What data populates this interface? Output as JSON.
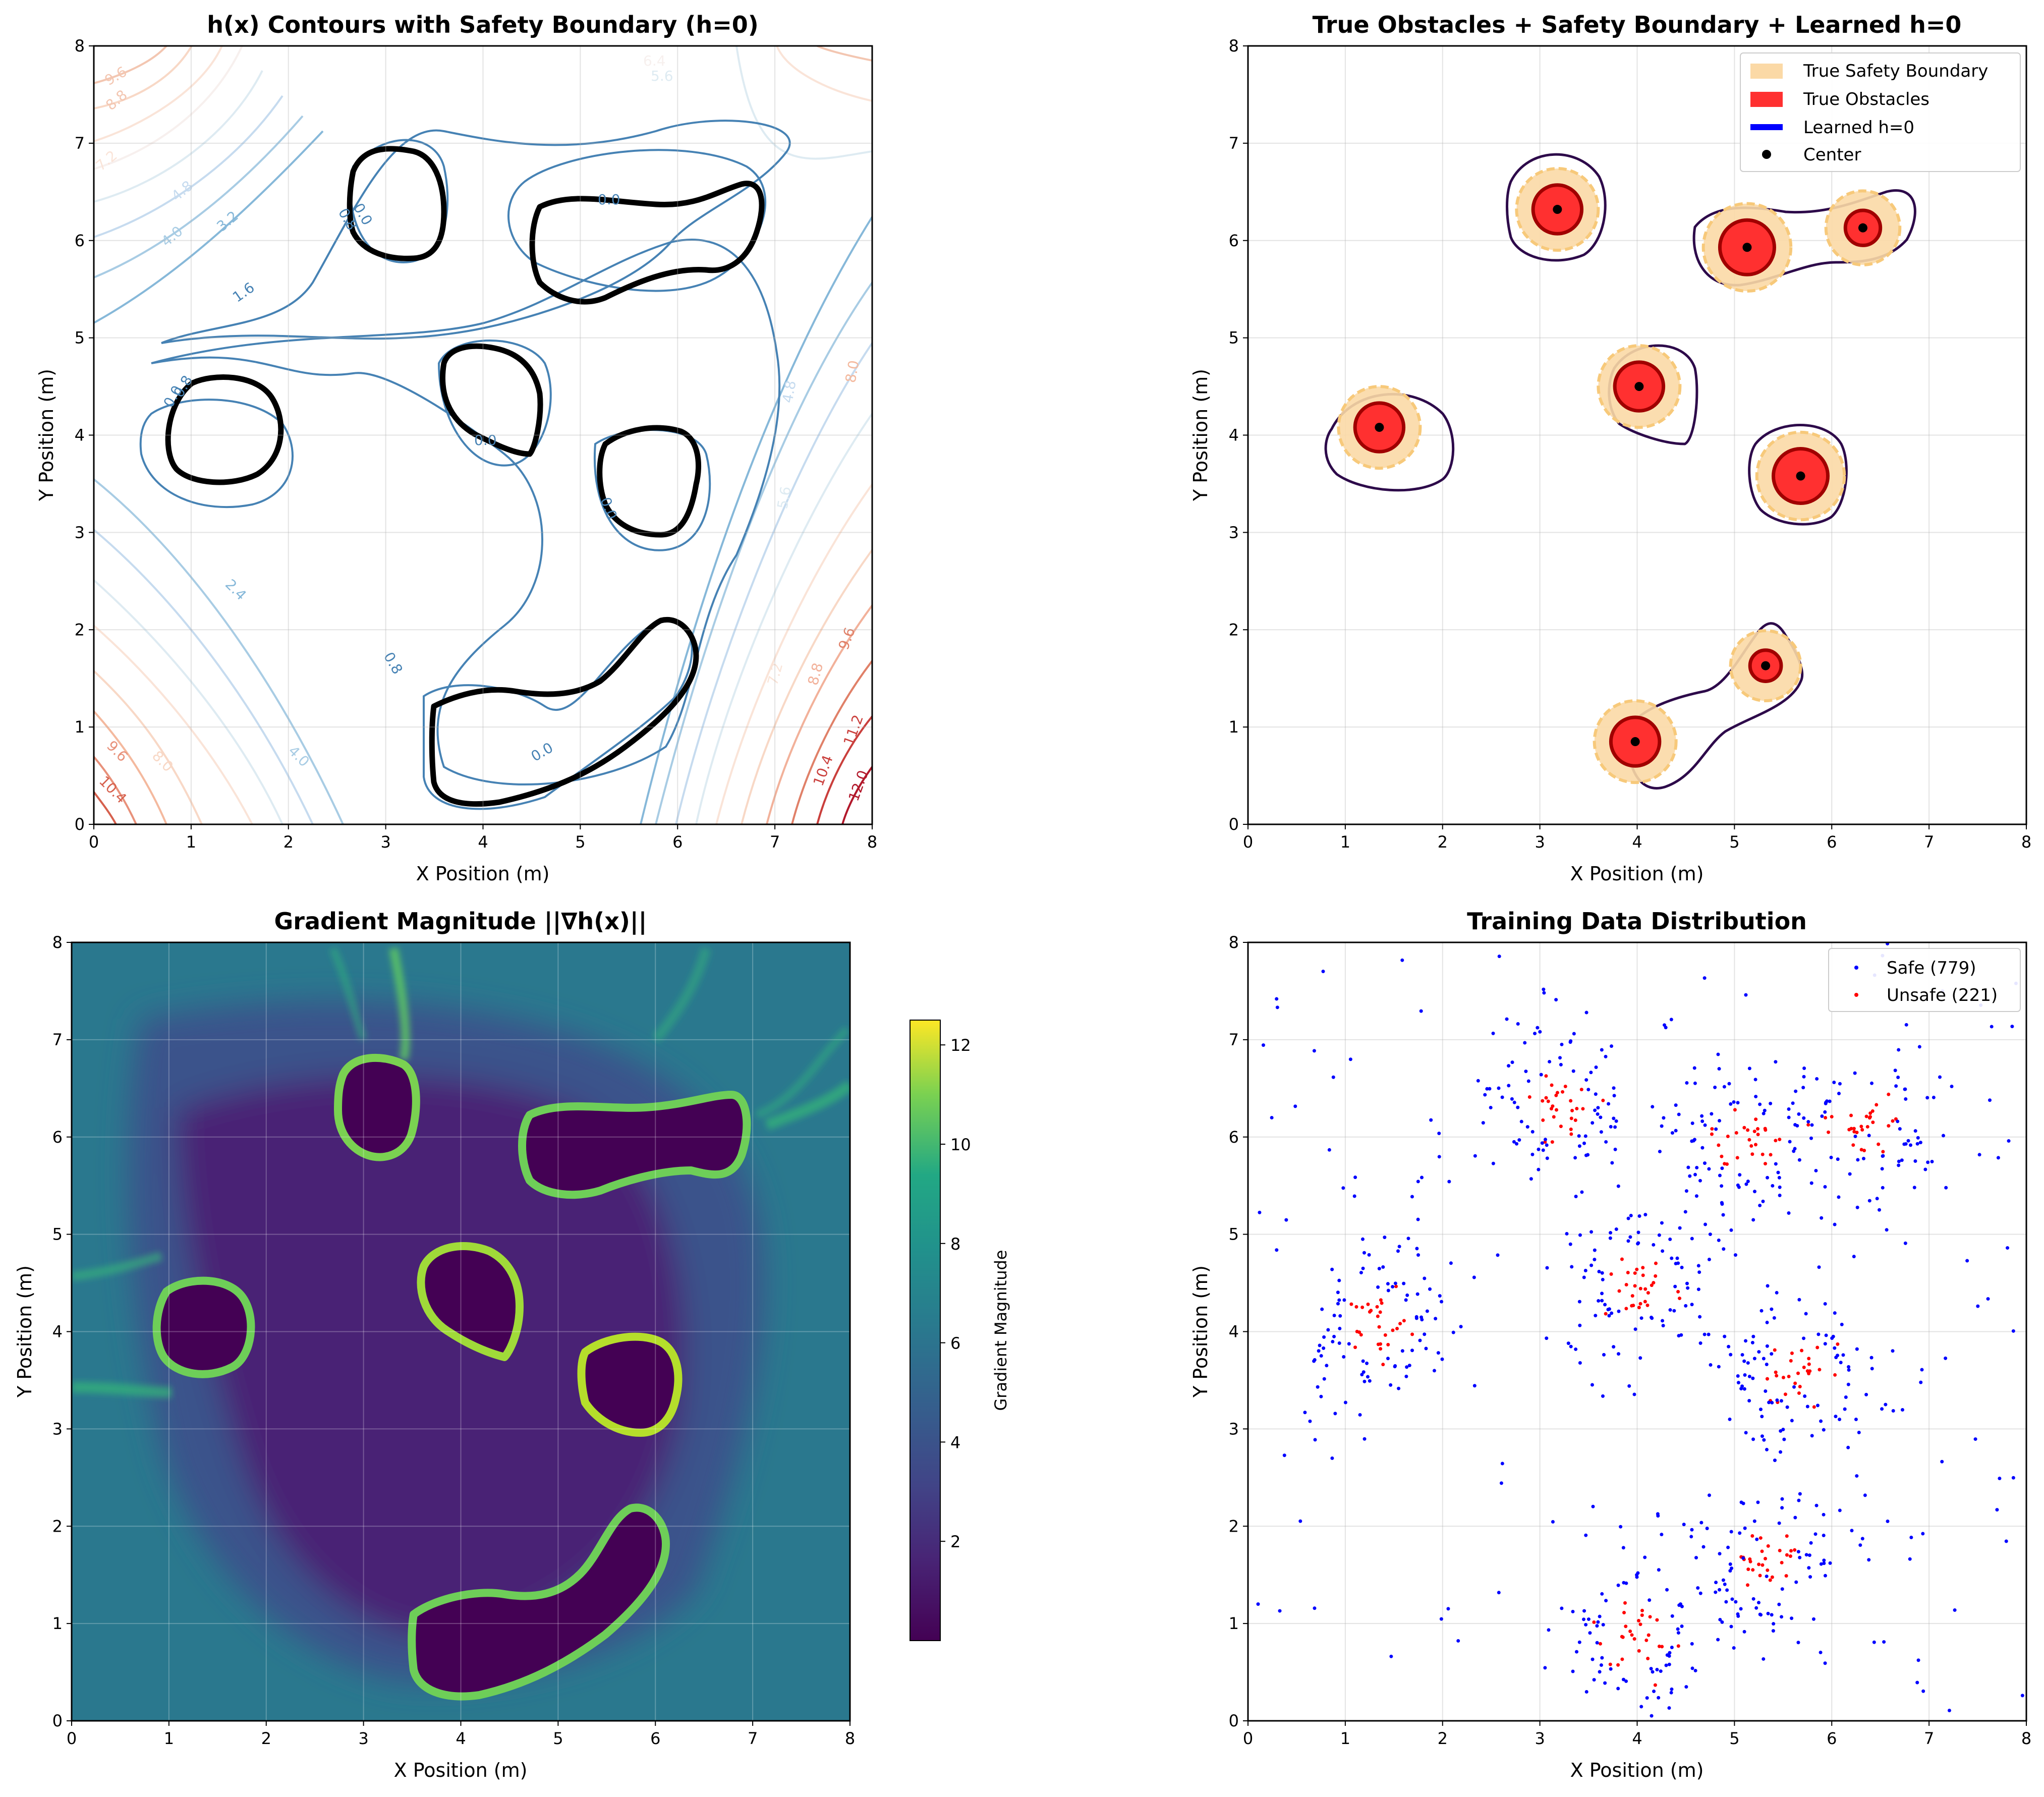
{
  "chart_data": [
    {
      "type": "contour",
      "title": "h(x) Contours with Safety Boundary (h=0)",
      "xlabel": "X Position (m)",
      "ylabel": "Y Position (m)",
      "xlim": [
        0,
        8
      ],
      "ylim": [
        0,
        8
      ],
      "xticks": [
        "0",
        "1",
        "2",
        "3",
        "4",
        "5",
        "6",
        "7",
        "8"
      ],
      "yticks": [
        "0",
        "1",
        "2",
        "3",
        "4",
        "5",
        "6",
        "7",
        "8"
      ],
      "grid": true,
      "colormap": "RdBu_r",
      "contour_levels": [
        0.8,
        1.6,
        2.4,
        3.2,
        4.0,
        4.8,
        5.6,
        6.4,
        7.2,
        8.0,
        8.8,
        9.6,
        10.4,
        11.2,
        12.0
      ],
      "contour_labels": [
        "0.8",
        "0.8",
        "0.8",
        "1.6",
        "2.4",
        "3.2",
        "4.0",
        "4.0",
        "4.8",
        "4.8",
        "5.6",
        "5.6",
        "6.4",
        "7.2",
        "7.2",
        "8.0",
        "8.0",
        "8.8",
        "8.8",
        "9.6",
        "9.6",
        "9.6",
        "10.4",
        "10.4",
        "11.2",
        "12.0",
        "0.0",
        "0.0",
        "0.0",
        "0.0",
        "0.0",
        "0.0"
      ],
      "safety_boundary_level": 0,
      "safety_boundary_color": "#000000"
    },
    {
      "type": "scatter",
      "title": "True Obstacles + Safety Boundary + Learned h=0",
      "xlabel": "X Position (m)",
      "ylabel": "Y Position (m)",
      "xlim": [
        0,
        8
      ],
      "ylim": [
        0,
        8
      ],
      "xticks": [
        "0",
        "1",
        "2",
        "3",
        "4",
        "5",
        "6",
        "7",
        "8"
      ],
      "yticks": [
        "0",
        "1",
        "2",
        "3",
        "4",
        "5",
        "6",
        "7",
        "8"
      ],
      "grid": true,
      "legend_position": "top-right",
      "legend": [
        "True Safety Boundary",
        "True Obstacles",
        "Learned h=0",
        "Center"
      ],
      "colors": {
        "safety": "#fbd9a6",
        "safety_edge": "#f7c97a",
        "obstacle": "#ff3030",
        "obstacle_edge": "#a00000",
        "learned": "#2d0a4a",
        "legend_learned": "#0000ff",
        "center": "#000000"
      },
      "obstacles": [
        {
          "x": 1.35,
          "y": 4.08,
          "r": 0.25,
          "safety_r": 0.42
        },
        {
          "x": 3.18,
          "y": 6.32,
          "r": 0.25,
          "safety_r": 0.42
        },
        {
          "x": 4.02,
          "y": 4.5,
          "r": 0.25,
          "safety_r": 0.42
        },
        {
          "x": 5.13,
          "y": 5.93,
          "r": 0.28,
          "safety_r": 0.45
        },
        {
          "x": 6.32,
          "y": 6.13,
          "r": 0.18,
          "safety_r": 0.38
        },
        {
          "x": 5.68,
          "y": 3.58,
          "r": 0.28,
          "safety_r": 0.45
        },
        {
          "x": 5.32,
          "y": 1.63,
          "r": 0.16,
          "safety_r": 0.36
        },
        {
          "x": 3.98,
          "y": 0.85,
          "r": 0.25,
          "safety_r": 0.42
        }
      ]
    },
    {
      "type": "heatmap",
      "title": "Gradient Magnitude ||∇h(x)||",
      "xlabel": "X Position (m)",
      "ylabel": "Y Position (m)",
      "xlim": [
        0,
        8
      ],
      "ylim": [
        0,
        8
      ],
      "xticks": [
        "0",
        "1",
        "2",
        "3",
        "4",
        "5",
        "6",
        "7",
        "8"
      ],
      "yticks": [
        "0",
        "1",
        "2",
        "3",
        "4",
        "5",
        "6",
        "7",
        "8"
      ],
      "grid": true,
      "colormap": "viridis",
      "colorbar_label": "Gradient Magnitude",
      "colorbar_ticks": [
        "2",
        "4",
        "6",
        "8",
        "10",
        "12"
      ],
      "colorbar_values": [
        2,
        4,
        6,
        8,
        10,
        12
      ],
      "color_range": [
        0,
        12.5
      ]
    },
    {
      "type": "scatter",
      "title": "Training Data Distribution",
      "xlabel": "X Position (m)",
      "ylabel": "Y Position (m)",
      "xlim": [
        0,
        8
      ],
      "ylim": [
        0,
        8
      ],
      "xticks": [
        "0",
        "1",
        "2",
        "3",
        "4",
        "5",
        "6",
        "7",
        "8"
      ],
      "yticks": [
        "0",
        "1",
        "2",
        "3",
        "4",
        "5",
        "6",
        "7",
        "8"
      ],
      "grid": true,
      "legend_position": "top-right",
      "series": [
        {
          "name": "Safe (779)",
          "color": "#0000ff",
          "count": 779
        },
        {
          "name": "Unsafe (221)",
          "color": "#ff0000",
          "count": 221
        }
      ]
    }
  ]
}
